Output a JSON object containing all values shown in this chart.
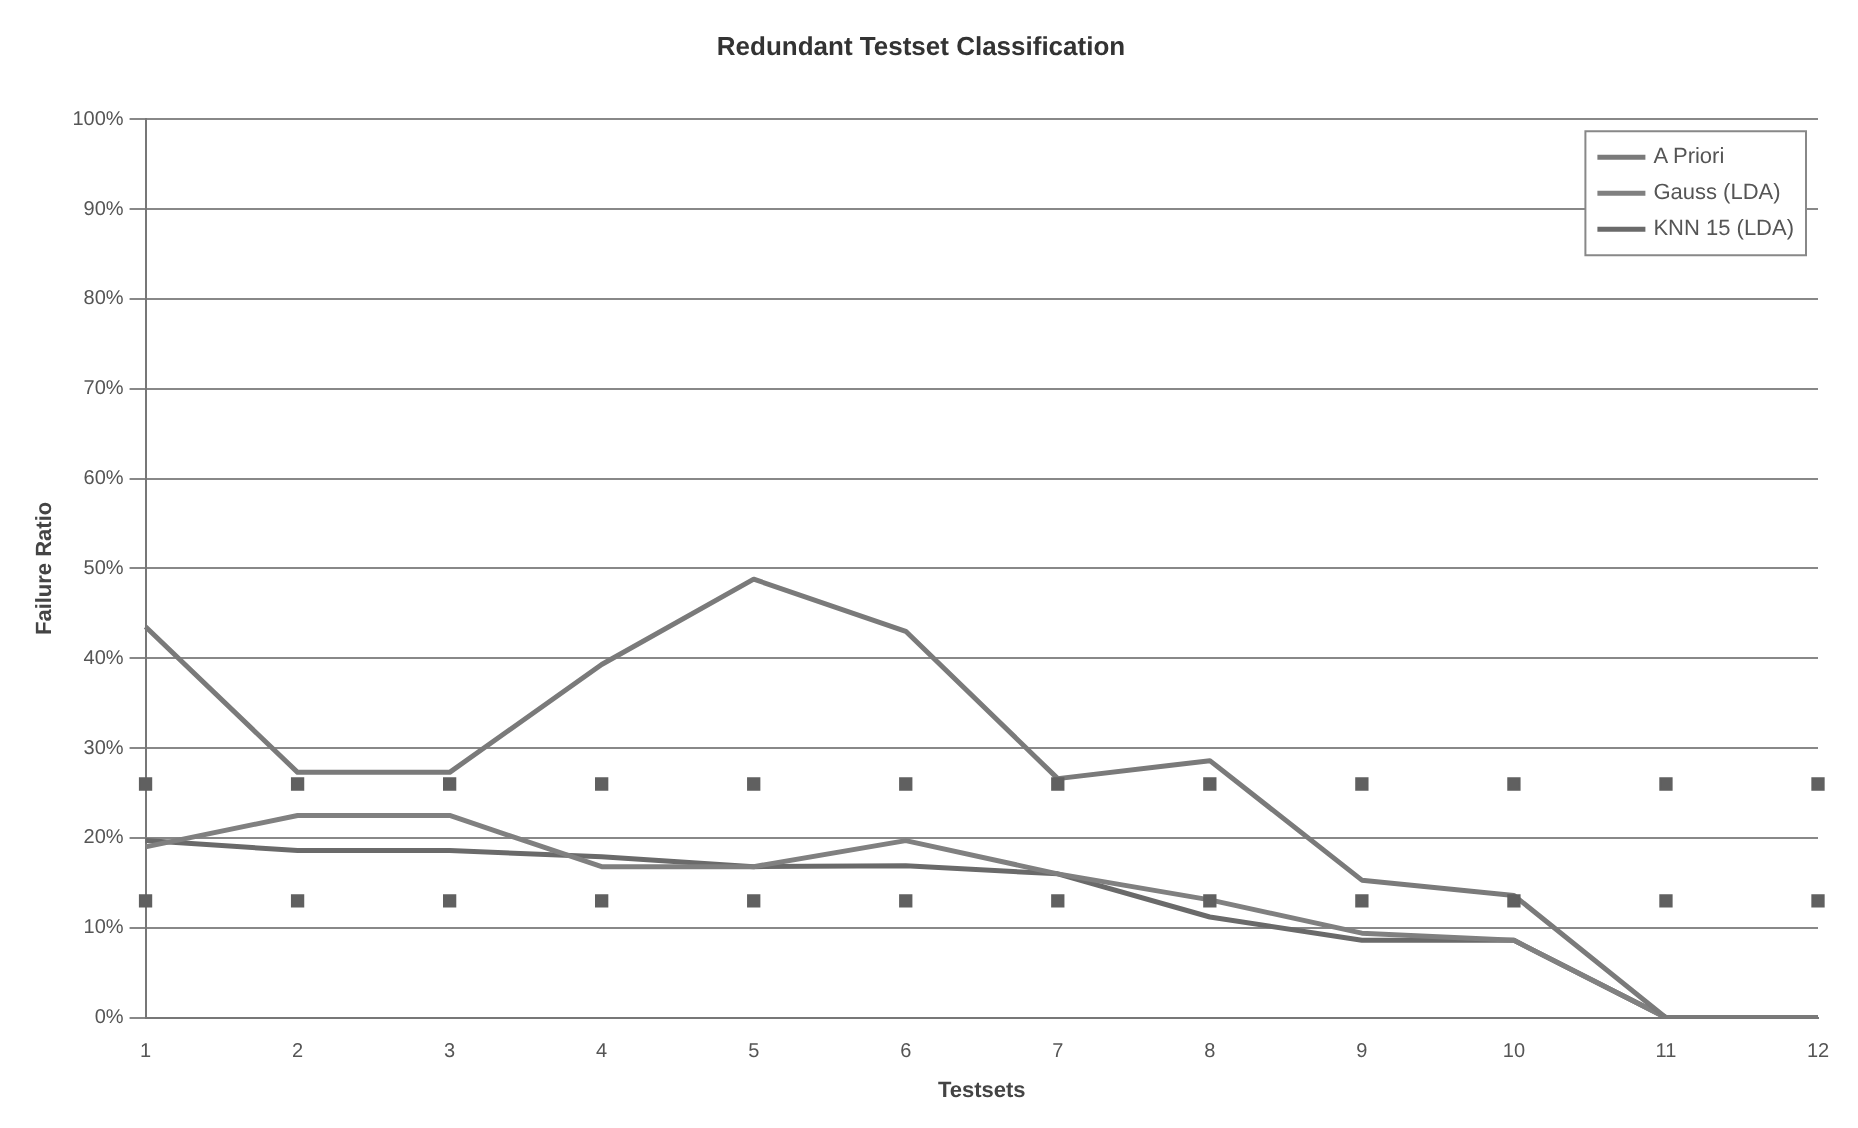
{
  "chart_data": {
    "type": "line",
    "title": "Redundant Testset Classification",
    "xlabel": "Testsets",
    "ylabel": "Failure Ratio",
    "categories": [
      "1",
      "2",
      "3",
      "4",
      "5",
      "6",
      "7",
      "8",
      "9",
      "10",
      "11",
      "12"
    ],
    "series": [
      {
        "name": "A Priori",
        "color": "#7a7a7a",
        "values": [
          43.5,
          27.3,
          27.3,
          39.3,
          48.8,
          43.0,
          26.6,
          28.6,
          15.3,
          13.6,
          0,
          0
        ]
      },
      {
        "name": "Gauss (LDA)",
        "color": "#808080",
        "values": [
          19.0,
          22.5,
          22.5,
          16.8,
          16.8,
          19.7,
          16.0,
          13.1,
          9.4,
          8.6,
          0,
          0
        ]
      },
      {
        "name": "KNN 15 (LDA)",
        "color": "#6a6a6a",
        "values": [
          19.7,
          18.6,
          18.6,
          17.9,
          16.8,
          16.9,
          16.0,
          11.2,
          8.6,
          8.6,
          0,
          0
        ]
      },
      {
        "type": "scatter",
        "color": "#606060",
        "marker": "square",
        "values": [
          26,
          26,
          26,
          26,
          26,
          26,
          26,
          26,
          26,
          26,
          26,
          26
        ]
      },
      {
        "type": "scatter",
        "color": "#606060",
        "marker": "square",
        "values": [
          13,
          13,
          13,
          13,
          13,
          13,
          13,
          13,
          13,
          13,
          13,
          13
        ]
      }
    ],
    "ylim": [
      0,
      100
    ],
    "yticks": [
      {
        "value": 0,
        "label": "0%"
      },
      {
        "value": 10,
        "label": "10%"
      },
      {
        "value": 20,
        "label": "20%"
      },
      {
        "value": 30,
        "label": "30%"
      },
      {
        "value": 40,
        "label": "40%"
      },
      {
        "value": 50,
        "label": "50%"
      },
      {
        "value": 60,
        "label": "60%"
      },
      {
        "value": 70,
        "label": "70%"
      },
      {
        "value": 80,
        "label": "80%"
      },
      {
        "value": 90,
        "label": "90%"
      },
      {
        "value": 100,
        "label": "100%"
      }
    ],
    "grid": "y",
    "legend": "top right",
    "marker": "none"
  }
}
